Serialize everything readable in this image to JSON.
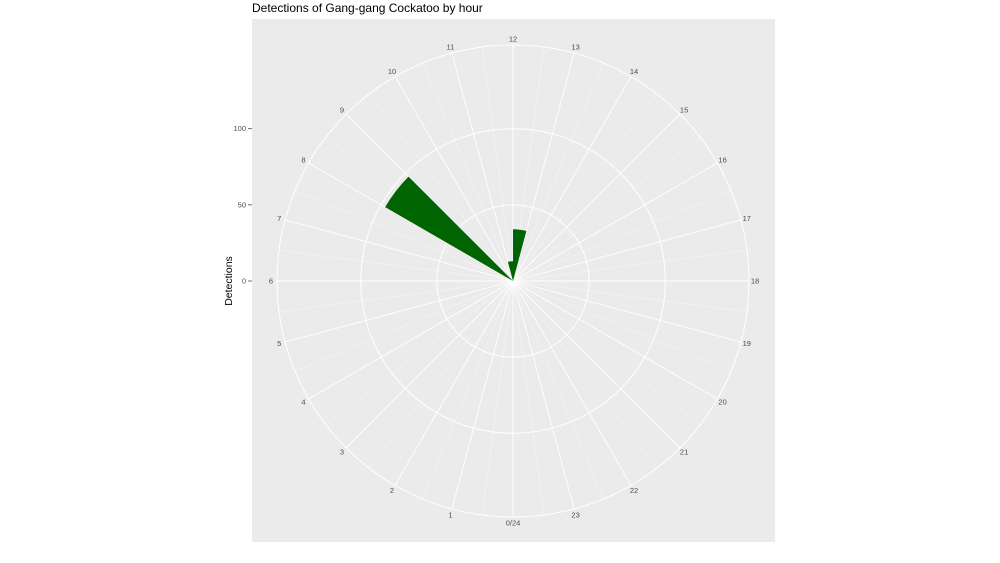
{
  "chart_data": {
    "type": "bar",
    "coord": "polar",
    "title": "Detections of Gang-gang Cockatoo by hour",
    "xlabel": "",
    "ylabel": "Detections",
    "categories": [
      "0/24",
      "1",
      "2",
      "3",
      "4",
      "5",
      "6",
      "7",
      "8",
      "9",
      "10",
      "11",
      "12",
      "13",
      "14",
      "15",
      "16",
      "17",
      "18",
      "19",
      "20",
      "21",
      "22",
      "23"
    ],
    "values": [
      0,
      0,
      0,
      0,
      0,
      0,
      0,
      0,
      97,
      0,
      0,
      13,
      34,
      0,
      0,
      0,
      0,
      0,
      0,
      0,
      0,
      0,
      0,
      0
    ],
    "ylim": [
      0,
      155
    ],
    "y_ticks": [
      0,
      50,
      100
    ],
    "y_tick_labels": [
      "0",
      "50",
      "100"
    ],
    "bar_color": "#006400",
    "panel_background": "#ebebeb",
    "grid": true,
    "legend": "none"
  }
}
